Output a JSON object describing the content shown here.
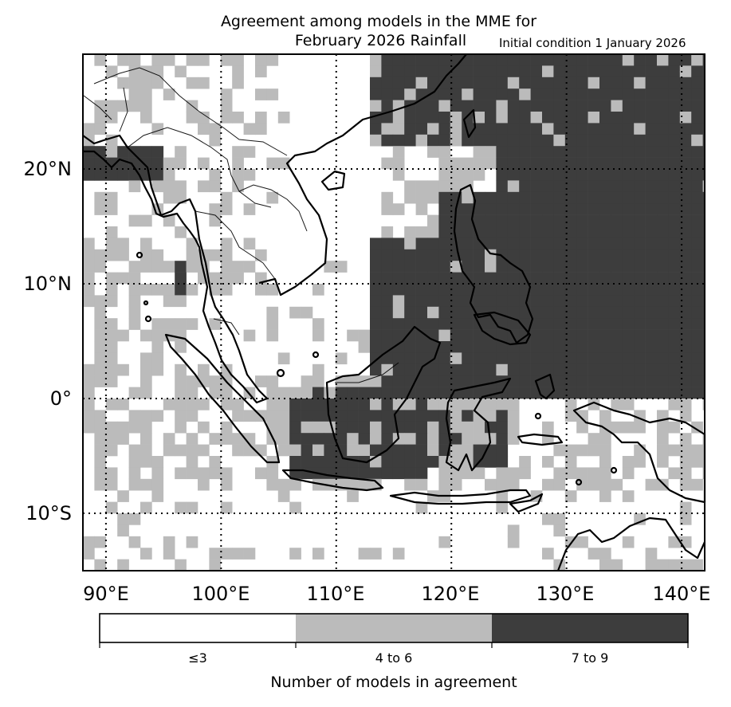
{
  "title_line1": "Agreement among models in the MME for",
  "title_line2": "February 2026  Rainfall",
  "subtitle": "Initial condition 1 January 2026",
  "lat_labels": [
    "20°N",
    "10°N",
    "0°",
    "10°S"
  ],
  "lon_labels": [
    "90°E",
    "100°E",
    "110°E",
    "120°E",
    "130°E",
    "140°E"
  ],
  "colorbar": {
    "title": "Number of models in agreement",
    "categories": [
      {
        "label": "≤3",
        "color": "#ffffff"
      },
      {
        "label": "4 to 6",
        "color": "#bbbbbb"
      },
      {
        "label": "7 to 9",
        "color": "#3d3d3d"
      }
    ]
  },
  "map": {
    "lon_range": [
      88,
      142
    ],
    "lat_range": [
      -15,
      30
    ],
    "grid_lons": [
      90,
      100,
      110,
      120,
      130,
      140
    ],
    "grid_lats": [
      20,
      10,
      0,
      -10
    ]
  }
}
